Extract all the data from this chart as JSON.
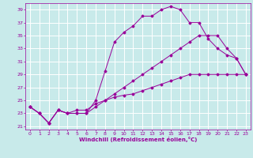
{
  "title": "",
  "xlabel": "Windchill (Refroidissement éolien,°C)",
  "ylabel": "",
  "background_color": "#c8eaea",
  "grid_color": "#ffffff",
  "line_color": "#990099",
  "xlim": [
    -0.5,
    23.5
  ],
  "ylim": [
    20.5,
    40
  ],
  "xticks": [
    0,
    1,
    2,
    3,
    4,
    5,
    6,
    7,
    8,
    9,
    10,
    11,
    12,
    13,
    14,
    15,
    16,
    17,
    18,
    19,
    20,
    21,
    22,
    23
  ],
  "yticks": [
    21,
    23,
    25,
    27,
    29,
    31,
    33,
    35,
    37,
    39
  ],
  "lines": [
    {
      "x": [
        0,
        1,
        2,
        3,
        4,
        5,
        6,
        7,
        8,
        9,
        10,
        11,
        12,
        13,
        14,
        15,
        16,
        17,
        18,
        19,
        20,
        21,
        22,
        23
      ],
      "y": [
        24,
        23,
        21.5,
        23.5,
        23,
        23,
        23,
        25,
        29.5,
        34,
        35.5,
        36.5,
        38,
        38,
        39,
        39.5,
        39,
        37,
        37,
        34.5,
        33,
        32,
        31.5,
        29
      ]
    },
    {
      "x": [
        0,
        1,
        2,
        3,
        4,
        5,
        6,
        7,
        8,
        9,
        10,
        11,
        12,
        13,
        14,
        15,
        16,
        17,
        18,
        19,
        20,
        21,
        22,
        23
      ],
      "y": [
        24,
        23,
        21.5,
        23.5,
        23,
        23.5,
        23.5,
        24.5,
        25.0,
        25.5,
        25.8,
        26.0,
        26.5,
        27.0,
        27.5,
        28.0,
        28.5,
        29.0,
        29.0,
        29.0,
        29.0,
        29.0,
        29.0,
        29.0
      ]
    },
    {
      "x": [
        0,
        1,
        2,
        3,
        4,
        5,
        6,
        7,
        8,
        9,
        10,
        11,
        12,
        13,
        14,
        15,
        16,
        17,
        18,
        19,
        20,
        21,
        22,
        23
      ],
      "y": [
        24,
        23,
        21.5,
        23.5,
        23,
        23,
        23,
        24,
        25,
        26,
        27,
        28,
        29,
        30,
        31,
        32,
        33,
        34,
        35,
        35,
        35,
        33,
        31.5,
        29
      ]
    }
  ]
}
